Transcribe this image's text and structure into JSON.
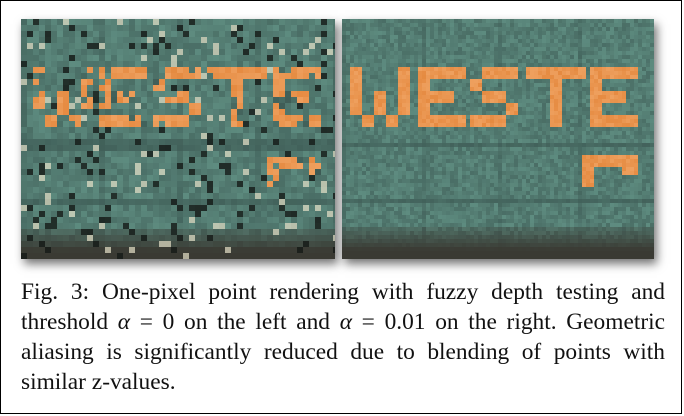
{
  "figure": {
    "panels": [
      {
        "label": "",
        "fuzzy_threshold": "α = 0",
        "side": "left"
      },
      {
        "label": "",
        "fuzzy_threshold": "α = 0.01",
        "side": "right"
      }
    ],
    "panel_sign_text": [
      "WESTE",
      "WESTE"
    ],
    "colors": {
      "sign_green": "#5e8c80",
      "sign_green_dark": "#3d5a54",
      "letter_orange": "#e8914a",
      "bottom_dark": "#3a3a33"
    }
  },
  "caption": {
    "prefix": "Fig. 3: One-pixel point rendering with fuzzy depth testing and threshold ",
    "alpha1_sym": "α",
    "alpha1_rest": " = 0 on the left and ",
    "alpha2_sym": "α",
    "alpha2_rest": " = 0.01 on the right. Geometric aliasing is significantly reduced due to blending of points with similar z-values."
  }
}
